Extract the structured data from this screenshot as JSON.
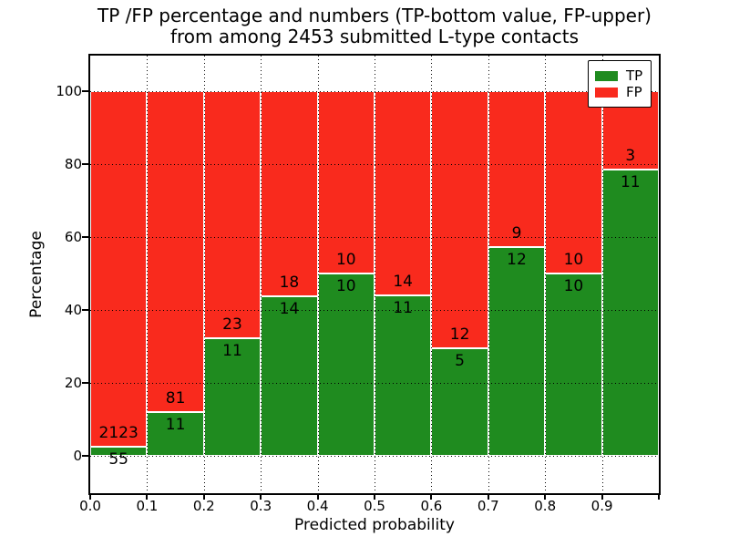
{
  "chart_data": {
    "type": "bar",
    "stacked": true,
    "percent_normalized": true,
    "title_line1": "TP /FP percentage and numbers (TP-bottom value, FP-upper)",
    "title_line2": "from among 2453 submitted L-type contacts",
    "xlabel": "Predicted probability",
    "ylabel": "Percentage",
    "total_submitted": 2453,
    "x_tick_labels": [
      "0.0",
      "0.1",
      "0.2",
      "0.3",
      "0.4",
      "0.5",
      "0.6",
      "0.7",
      "0.8",
      "0.9"
    ],
    "y_tick_values": [
      0,
      20,
      40,
      60,
      80,
      100
    ],
    "xlim": [
      0.0,
      1.0
    ],
    "ylim": [
      -10,
      110
    ],
    "grid_style": "dotted",
    "bar_edge_color": "#ffffff",
    "bins": [
      {
        "range": "0.0-0.1",
        "tp": 55,
        "fp": 2123,
        "tp_percent": 2.53
      },
      {
        "range": "0.1-0.2",
        "tp": 11,
        "fp": 81,
        "tp_percent": 11.96
      },
      {
        "range": "0.2-0.3",
        "tp": 11,
        "fp": 23,
        "tp_percent": 32.35
      },
      {
        "range": "0.3-0.4",
        "tp": 14,
        "fp": 18,
        "tp_percent": 43.75
      },
      {
        "range": "0.4-0.5",
        "tp": 10,
        "fp": 10,
        "tp_percent": 50.0
      },
      {
        "range": "0.5-0.6",
        "tp": 11,
        "fp": 14,
        "tp_percent": 44.0
      },
      {
        "range": "0.6-0.7",
        "tp": 5,
        "fp": 12,
        "tp_percent": 29.41
      },
      {
        "range": "0.7-0.8",
        "tp": 12,
        "fp": 9,
        "tp_percent": 57.14
      },
      {
        "range": "0.8-0.9",
        "tp": 10,
        "fp": 10,
        "tp_percent": 50.0
      },
      {
        "range": "0.9-1.0",
        "tp": 11,
        "fp": 3,
        "tp_percent": 78.57
      }
    ],
    "series": [
      {
        "name": "TP",
        "color": "#1f8b1f",
        "counts": [
          55,
          11,
          11,
          14,
          10,
          11,
          5,
          12,
          10,
          11
        ]
      },
      {
        "name": "FP",
        "color": "#f92a1d",
        "counts": [
          2123,
          81,
          23,
          18,
          10,
          14,
          12,
          9,
          10,
          3
        ]
      }
    ],
    "legend": {
      "position": "upper right",
      "entries": [
        {
          "label": "TP",
          "color": "#1f8b1f"
        },
        {
          "label": "FP",
          "color": "#f92a1d"
        }
      ]
    }
  }
}
